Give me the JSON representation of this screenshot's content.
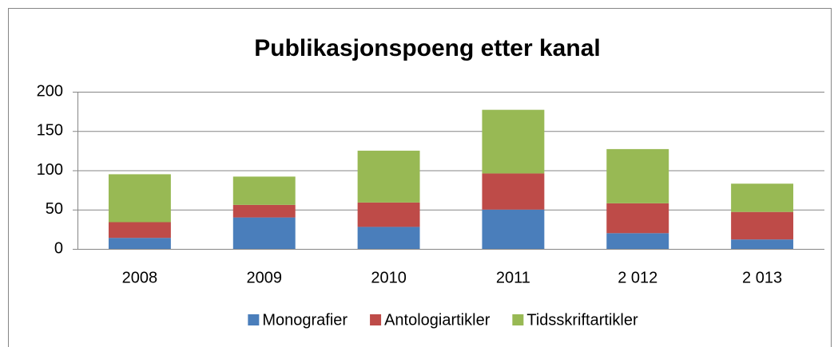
{
  "chart_data": {
    "type": "stacked_bar",
    "title": "Publikasjonspoeng etter kanal",
    "categories": [
      "2008",
      "2009",
      "2010",
      "2011",
      "2 012",
      "2 013"
    ],
    "series": [
      {
        "name": "Monografier",
        "color": "#4a7ebb",
        "values": [
          14,
          40,
          28,
          50,
          20,
          12
        ]
      },
      {
        "name": "Antologiartikler",
        "color": "#be4b48",
        "values": [
          20,
          16,
          31,
          46,
          38,
          35
        ]
      },
      {
        "name": "Tidsskriftartikler",
        "color": "#98b954",
        "values": [
          61,
          36,
          66,
          81,
          69,
          36
        ]
      }
    ],
    "ylim": [
      0,
      200
    ],
    "yticks": [
      0,
      50,
      100,
      150,
      200
    ],
    "grid": true,
    "legend": "bottom"
  }
}
